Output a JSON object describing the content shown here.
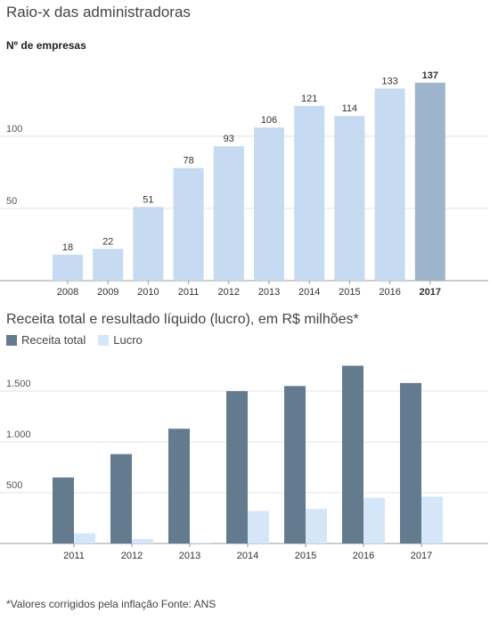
{
  "title": "Raio-x das administradoras",
  "footnote": "*Valores corrigidos pela inflação Fonte: ANS",
  "colors": {
    "bar_light": "#c6daf1",
    "bar_highlight": "#9eb3cc",
    "receita": "#637a8f",
    "lucro": "#d5e6f9",
    "grid": "#e3e3e3",
    "axis": "#999999"
  },
  "chart_data": [
    {
      "type": "bar",
      "subtitle": "Nº de empresas",
      "categories": [
        "2008",
        "2009",
        "2010",
        "2011",
        "2012",
        "2013",
        "2014",
        "2015",
        "2016",
        "2017"
      ],
      "values": [
        18,
        22,
        51,
        78,
        93,
        106,
        121,
        114,
        133,
        137
      ],
      "highlight": "2017",
      "ylim": [
        0,
        140
      ],
      "yticks": [
        50,
        100
      ],
      "grid": true
    },
    {
      "type": "bar",
      "title": "Receita total e resultado líquido (lucro), em R$ milhões*",
      "categories": [
        "2011",
        "2012",
        "2013",
        "2014",
        "2015",
        "2016",
        "2017"
      ],
      "series": [
        {
          "name": "Receita total",
          "values": [
            650,
            880,
            1130,
            1500,
            1550,
            1750,
            1580
          ]
        },
        {
          "name": "Lucro",
          "values": [
            100,
            45,
            10,
            320,
            340,
            450,
            460
          ]
        }
      ],
      "yticks": [
        500,
        1000,
        1500
      ],
      "ytick_labels": [
        "500",
        "1.000",
        "1.500"
      ],
      "ylim": [
        0,
        1800
      ],
      "grid": true,
      "legend": "top-left"
    }
  ]
}
